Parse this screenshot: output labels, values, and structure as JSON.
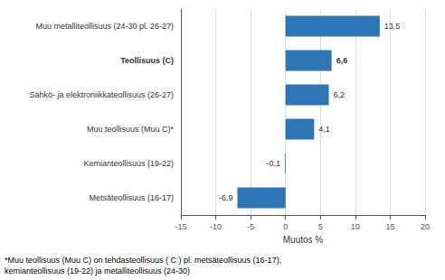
{
  "chart_data": {
    "type": "bar",
    "orientation": "horizontal",
    "categories": [
      "Metsäteollisuus (16-17)",
      "Kemianteollisuus (19-22)",
      "Muu teollisuus (Muu C)*",
      "Sähkö- ja elektroniikkateollisuus (26-27)",
      "Teollisuus (C)",
      "Muu metalliteollisuus (24-30 pl. 26-27)"
    ],
    "values": [
      -6.9,
      -0.1,
      4.1,
      6.2,
      6.6,
      13.5
    ],
    "value_labels": [
      "-6,9",
      "-0,1",
      "4,1",
      "6,2",
      "6,6",
      "13,5"
    ],
    "data_labels": true,
    "color": "#2E75B6",
    "xlabel": "Muutos %",
    "xlim": [
      -15,
      20
    ],
    "xticks": [
      -15,
      -10,
      -5,
      0,
      5,
      10,
      15,
      20
    ],
    "grid": true,
    "footnote": "*Muu teollisuus (Muu C) on tehdasteollisuus ( C ) pl. metsäteollisuus (16-17),\nkemianteollisuus (19-22) ja metalliteollisuus (24-30)"
  }
}
